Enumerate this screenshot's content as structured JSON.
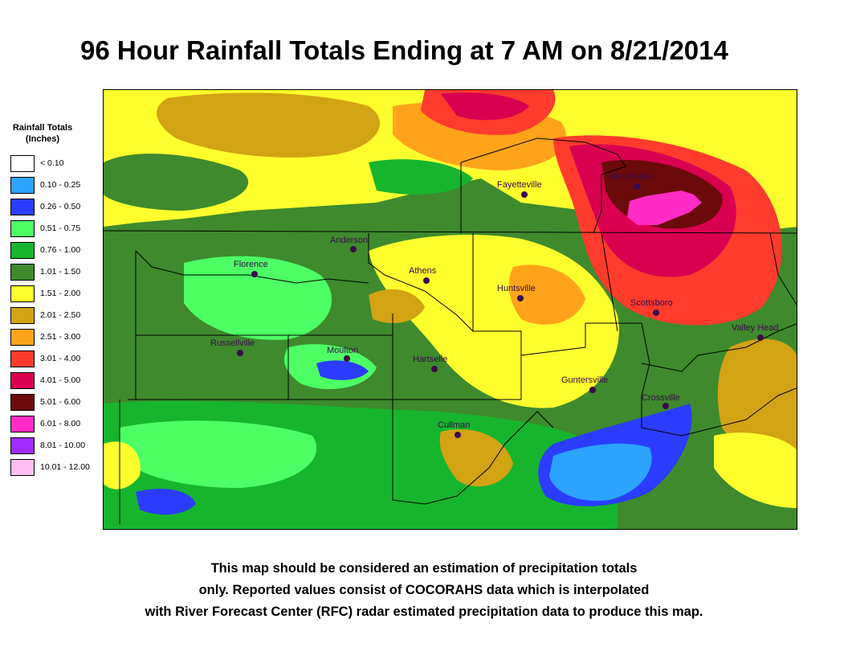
{
  "title": "96 Hour Rainfall Totals Ending at 7 AM on 8/21/2014",
  "legend": {
    "title_line1": "Rainfall Totals",
    "title_line2": "(Inches)",
    "items": [
      {
        "label": "< 0.10",
        "color": "#ffffff"
      },
      {
        "label": "0.10 - 0.25",
        "color": "#2ba3ff"
      },
      {
        "label": "0.26 - 0.50",
        "color": "#2b3cff"
      },
      {
        "label": "0.51 - 0.75",
        "color": "#4dff64"
      },
      {
        "label": "0.76 - 1.00",
        "color": "#17b52e"
      },
      {
        "label": "1.01 - 1.50",
        "color": "#3e8a2d"
      },
      {
        "label": "1.51 - 2.00",
        "color": "#ffff2e"
      },
      {
        "label": "2.01 - 2.50",
        "color": "#d2a313"
      },
      {
        "label": "2.51 - 3.00",
        "color": "#ffa41a"
      },
      {
        "label": "3.01 - 4.00",
        "color": "#ff3b2e"
      },
      {
        "label": "4.01 - 5.00",
        "color": "#d9004f"
      },
      {
        "label": "5.01 - 6.00",
        "color": "#6b0a0a"
      },
      {
        "label": "6.01 - 8.00",
        "color": "#ff2bc6"
      },
      {
        "label": "8.01 - 10.00",
        "color": "#9f2bff"
      },
      {
        "label": "10.01 - 12.00",
        "color": "#ffc0f0"
      }
    ]
  },
  "cities": [
    {
      "name": "Fayetteville"
    },
    {
      "name": "Winchester"
    },
    {
      "name": "Anderson"
    },
    {
      "name": "Florence"
    },
    {
      "name": "Athens"
    },
    {
      "name": "Huntsville"
    },
    {
      "name": "Scottsboro"
    },
    {
      "name": "Valley Head"
    },
    {
      "name": "Russellville"
    },
    {
      "name": "Moulton"
    },
    {
      "name": "Hartselle"
    },
    {
      "name": "Guntersville"
    },
    {
      "name": "Crossville"
    },
    {
      "name": "Cullman"
    }
  ],
  "footnote": {
    "line1": "This map should be considered an estimation of precipitation totals",
    "line2": "only.  Reported values consist of COCORAHS data which is  interpolated",
    "line3": "with River Forecast Center (RFC) radar estimated precipitation data to produce this map."
  }
}
